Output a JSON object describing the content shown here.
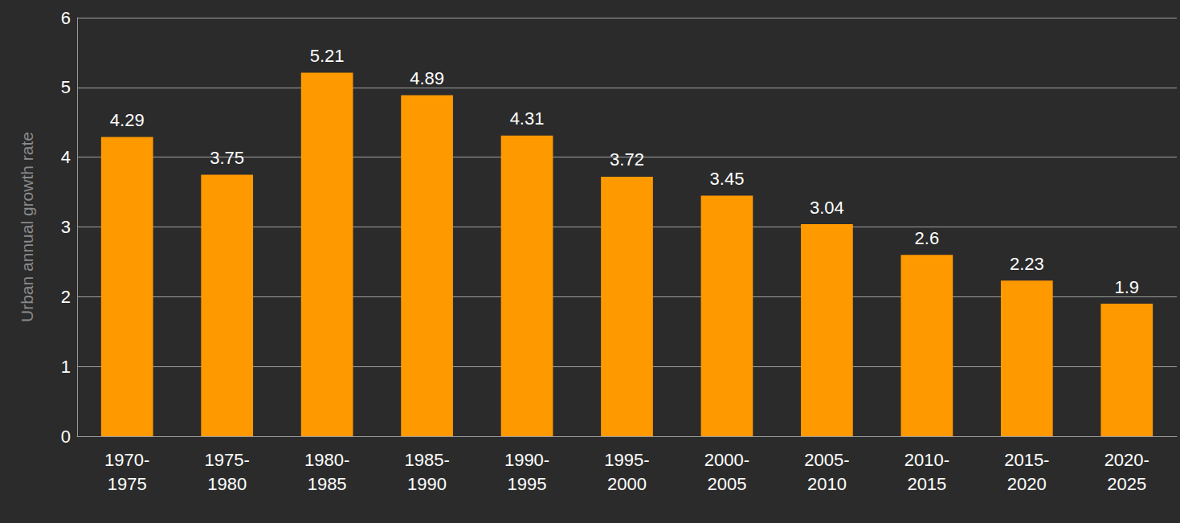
{
  "chart_data": {
    "type": "bar",
    "y_label": "Urban annual growth rate",
    "categories": [
      "1970-1975",
      "1975-1980",
      "1980-1985",
      "1985-1990",
      "1990-1995",
      "1995-2000",
      "2000-2005",
      "2005-2010",
      "2010-2015",
      "2015-2020",
      "2020-2025"
    ],
    "values": [
      4.29,
      3.75,
      5.21,
      4.89,
      4.31,
      3.72,
      3.45,
      3.04,
      2.6,
      2.23,
      1.9
    ],
    "color": "#ff9900",
    "ylim": [
      0,
      6
    ],
    "yticks": [
      0,
      1,
      2,
      3,
      4,
      5,
      6
    ],
    "grid": true,
    "data_labels": true
  }
}
